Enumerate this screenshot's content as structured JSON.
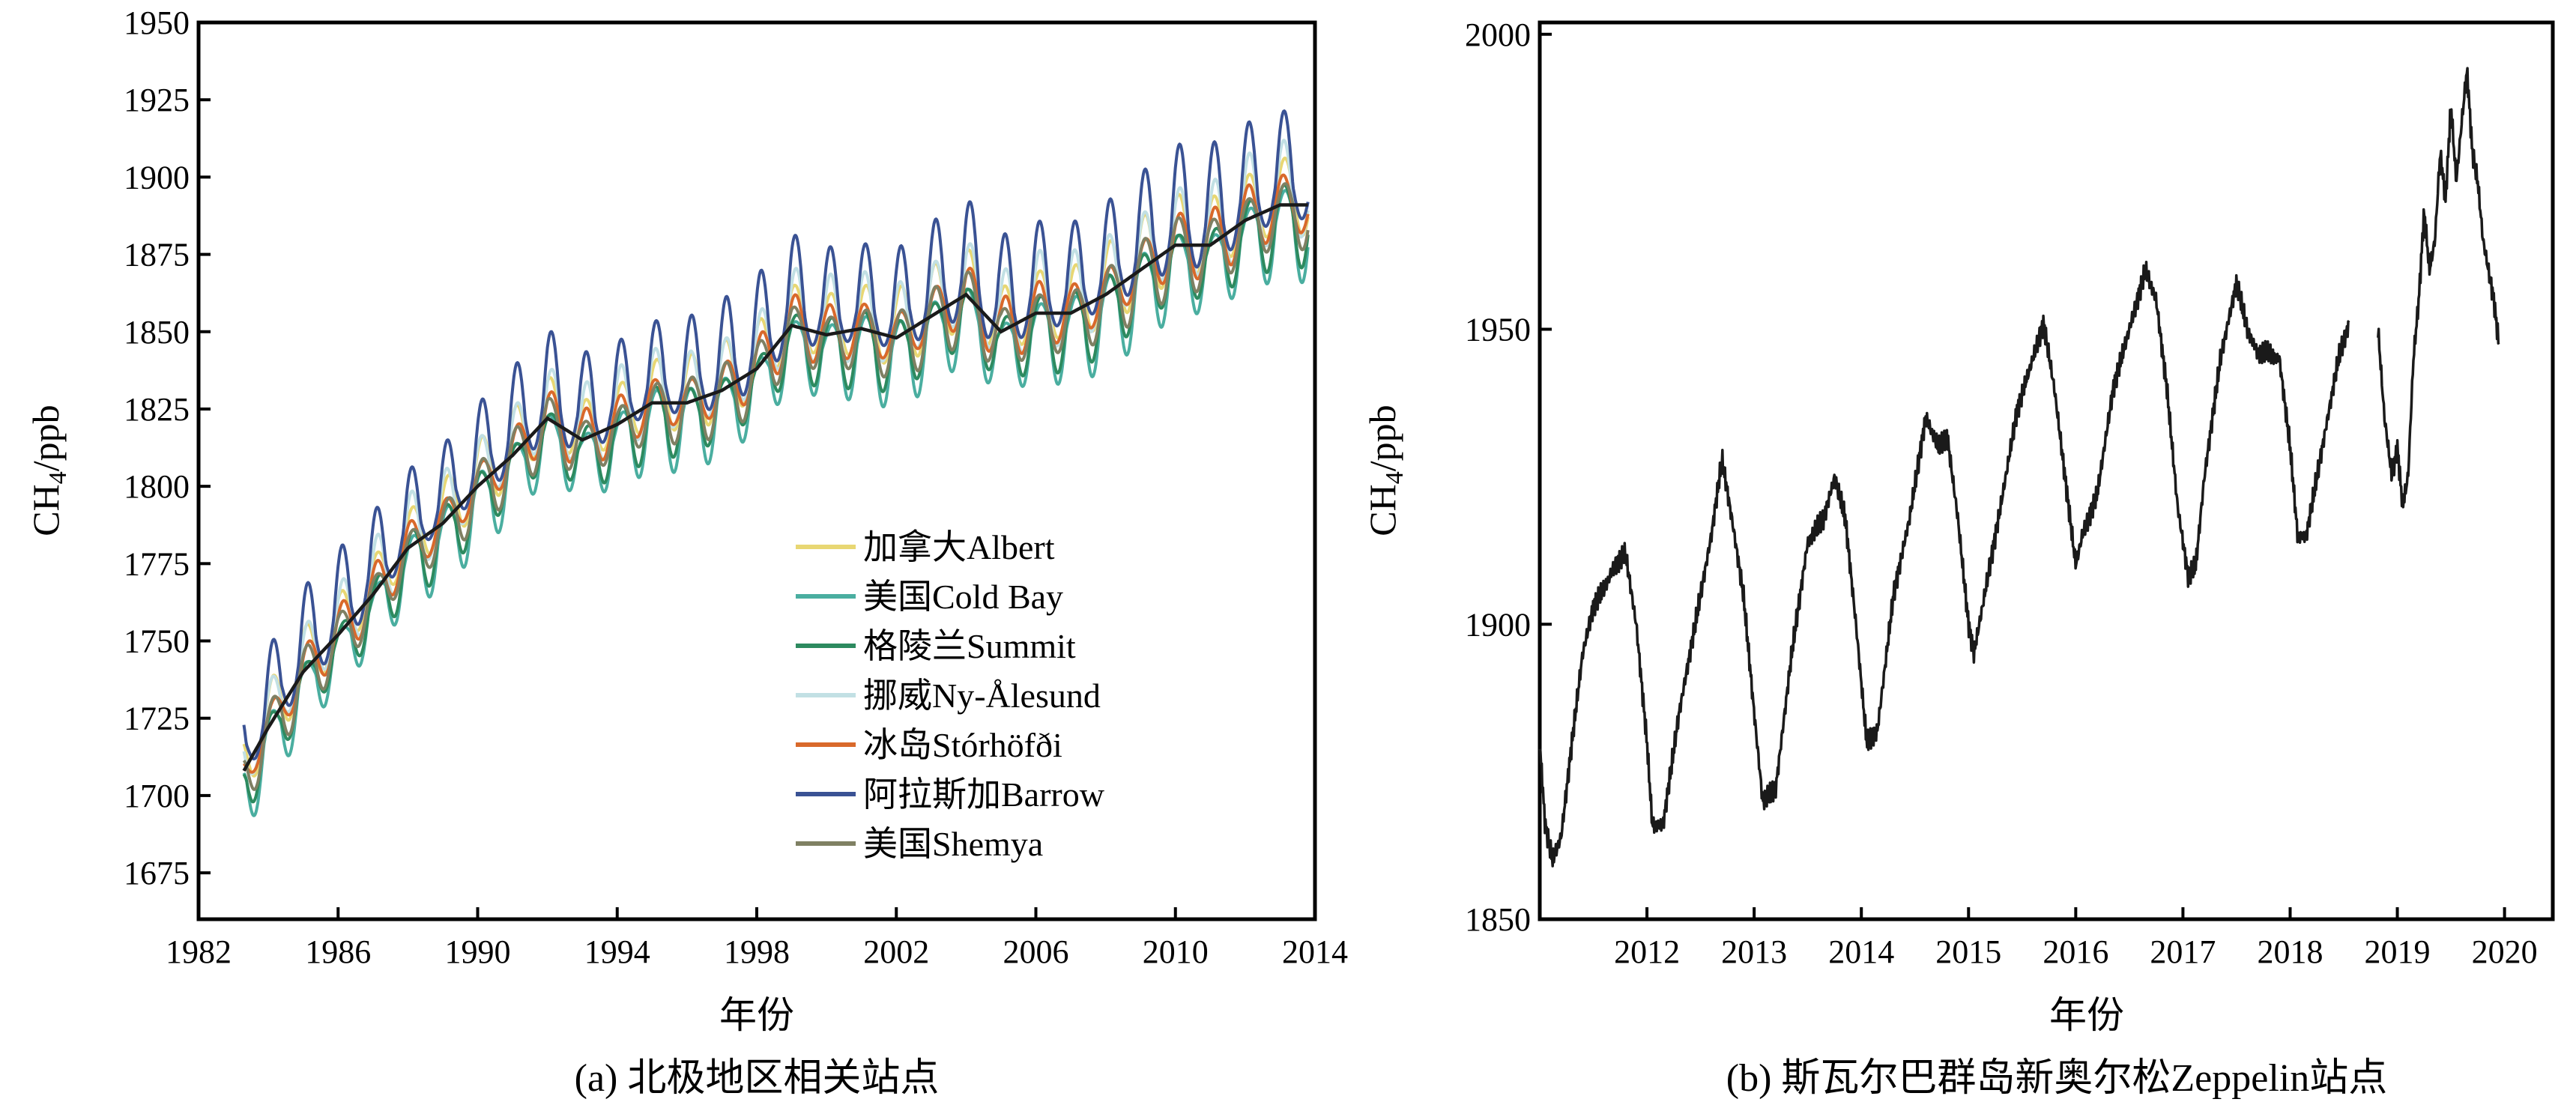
{
  "chart_data": [
    {
      "type": "line",
      "panel": "a",
      "caption": "(a) 北极地区相关站点",
      "xlabel": "年份",
      "ylabel": "CH4/ppb",
      "ylabel_main": "CH",
      "ylabel_sub": "4",
      "ylabel_tail": "/ppb",
      "xlim": [
        1982,
        2014
      ],
      "ylim": [
        1660,
        1950
      ],
      "xticks": [
        1982,
        1986,
        1990,
        1994,
        1998,
        2002,
        2006,
        2010,
        2014
      ],
      "xtick_labels": [
        "1982",
        "1986",
        "1990",
        "1994",
        "1998",
        "2002",
        "2006",
        "2010",
        "2014"
      ],
      "yticks": [
        1675,
        1700,
        1725,
        1750,
        1775,
        1800,
        1825,
        1850,
        1875,
        1900,
        1925,
        1950
      ],
      "ytick_labels": [
        "1675",
        "1700",
        "1725",
        "1750",
        "1775",
        "1800",
        "1825",
        "1850",
        "1875",
        "1900",
        "1925",
        "1950"
      ],
      "legend_position": "lower-right",
      "trend": {
        "color": "#1a1a1a",
        "x": [
          1983.3,
          1984,
          1985,
          1986,
          1987,
          1988,
          1989,
          1990,
          1991,
          1992,
          1993,
          1994,
          1995,
          1996,
          1997,
          1998,
          1999,
          2000,
          2001,
          2002,
          2003,
          2004,
          2005,
          2006,
          2007,
          2008,
          2009,
          2010,
          2011,
          2012,
          2013,
          2013.8
        ],
        "y": [
          1708,
          1722,
          1740,
          1752,
          1765,
          1780,
          1788,
          1800,
          1810,
          1822,
          1815,
          1820,
          1827,
          1827,
          1831,
          1838,
          1852,
          1849,
          1851,
          1848,
          1855,
          1862,
          1850,
          1856,
          1856,
          1862,
          1870,
          1878,
          1878,
          1886,
          1891,
          1891
        ]
      },
      "series": [
        {
          "name": "加拿大Albert",
          "color": "#e8d773",
          "amp_up": 13,
          "amp_down": 13,
          "offset": 3
        },
        {
          "name": "美国Cold Bay",
          "color": "#4aaea0",
          "amp_up": 8,
          "amp_down": 20,
          "offset": -4
        },
        {
          "name": "格陵兰Summit",
          "color": "#2d8a5f",
          "amp_up": 8,
          "amp_down": 16,
          "offset": -3
        },
        {
          "name": "挪威Ny-Ålesund",
          "color": "#c2e0e4",
          "amp_up": 18,
          "amp_down": 12,
          "offset": 2
        },
        {
          "name": "冰岛Stórhöfði",
          "color": "#d9692b",
          "amp_up": 10,
          "amp_down": 10,
          "offset": 0
        },
        {
          "name": "阿拉斯加Barrow",
          "color": "#3a5294",
          "amp_up": 26,
          "amp_down": 12,
          "offset": 6
        },
        {
          "name": "美国Shemya",
          "color": "#7f8063",
          "amp_up": 9,
          "amp_down": 14,
          "offset": -1
        }
      ],
      "legend": [
        {
          "label": "加拿大Albert",
          "color": "#e8d773"
        },
        {
          "label": "美国Cold Bay",
          "color": "#4aaea0"
        },
        {
          "label": "格陵兰Summit",
          "color": "#2d8a5f"
        },
        {
          "label": "挪威Ny-Ålesund",
          "color": "#c2e0e4"
        },
        {
          "label": "冰岛Stórhöfði",
          "color": "#d9692b"
        },
        {
          "label": "阿拉斯加Barrow",
          "color": "#3a5294"
        },
        {
          "label": "美国Shemya",
          "color": "#7f8063"
        }
      ]
    },
    {
      "type": "line",
      "panel": "b",
      "caption": "(b) 斯瓦尔巴群岛新奥尔松Zeppelin站点",
      "xlabel": "年份",
      "ylabel_main": "CH",
      "ylabel_sub": "4",
      "ylabel_tail": "/ppb",
      "xlim": [
        2011.0,
        2020.45
      ],
      "ylim": [
        1850,
        2002
      ],
      "xticks": [
        2012,
        2013,
        2014,
        2015,
        2016,
        2017,
        2018,
        2019,
        2020
      ],
      "xtick_labels": [
        "2012",
        "2013",
        "2014",
        "2015",
        "2016",
        "2017",
        "2018",
        "2019",
        "2020"
      ],
      "yticks": [
        1850,
        1900,
        1950,
        2000
      ],
      "ytick_labels": [
        "1850",
        "1900",
        "1950",
        "2000"
      ],
      "series": [
        {
          "name": "",
          "color": "#1a1a1a",
          "segments": [
            {
              "x": [
                2011.0,
                2011.05,
                2011.12,
                2011.2,
                2011.3,
                2011.4,
                2011.5,
                2011.6,
                2011.7,
                2011.8,
                2011.9,
                2012.0,
                2012.05,
                2012.15,
                2012.3,
                2012.45,
                2012.6,
                2012.7,
                2012.8,
                2012.9,
                2013.0,
                2013.08,
                2013.2,
                2013.35,
                2013.5,
                2013.65,
                2013.75,
                2013.85,
                2013.95,
                2014.05,
                2014.15,
                2014.3,
                2014.45,
                2014.6,
                2014.72,
                2014.8,
                2014.9,
                2015.0,
                2015.05,
                2015.15,
                2015.3,
                2015.45,
                2015.6,
                2015.7,
                2015.8,
                2015.9,
                2016.0,
                2016.06,
                2016.12,
                2016.2,
                2016.35,
                2016.5,
                2016.65,
                2016.75,
                2016.85,
                2016.95,
                2017.05,
                2017.12,
                2017.2,
                2017.35,
                2017.5,
                2017.6,
                2017.7,
                2017.8,
                2017.9,
                2018.0,
                2018.07,
                2018.15,
                2018.3,
                2018.45,
                2018.55
              ],
              "y": [
                1880,
                1866,
                1860,
                1864,
                1880,
                1895,
                1903,
                1906,
                1910,
                1912,
                1900,
                1880,
                1866,
                1866,
                1885,
                1900,
                1915,
                1928,
                1917,
                1905,
                1885,
                1870,
                1872,
                1895,
                1914,
                1918,
                1925,
                1918,
                1900,
                1880,
                1882,
                1905,
                1918,
                1935,
                1930,
                1932,
                1918,
                1900,
                1895,
                1905,
                1920,
                1936,
                1945,
                1951,
                1940,
                1925,
                1910,
                1915,
                1918,
                1922,
                1940,
                1950,
                1960,
                1955,
                1940,
                1920,
                1908,
                1910,
                1925,
                1945,
                1958,
                1950,
                1946,
                1946,
                1945,
                1930,
                1915,
                1915,
                1930,
                1945,
                1951
              ]
            },
            {
              "x": [
                2018.82,
                2018.88,
                2018.95,
                2019.0,
                2019.05,
                2019.1,
                2019.15,
                2019.2,
                2019.25,
                2019.3,
                2019.35,
                2019.4,
                2019.45,
                2019.5,
                2019.55,
                2019.6,
                2019.65,
                2019.7,
                2019.75,
                2019.8,
                2019.85,
                2019.9,
                2019.95
              ],
              "y": [
                1950,
                1935,
                1925,
                1930,
                1920,
                1925,
                1945,
                1955,
                1970,
                1960,
                1965,
                1980,
                1972,
                1988,
                1975,
                1985,
                1994,
                1980,
                1975,
                1965,
                1960,
                1955,
                1947
              ]
            }
          ]
        }
      ]
    }
  ]
}
